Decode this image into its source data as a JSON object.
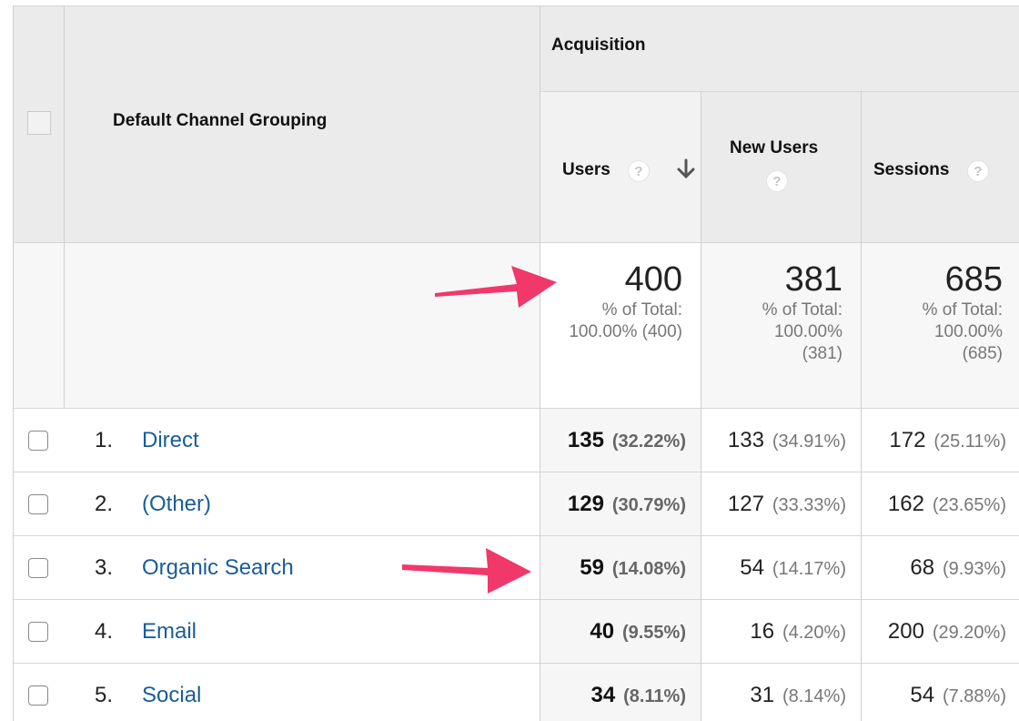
{
  "header": {
    "dimension_label": "Default Channel Grouping",
    "group_label": "Acquisition",
    "columns": [
      {
        "label": "Users",
        "sorted": true,
        "sort_icon": "arrow-down-icon",
        "help_icon": "question-icon"
      },
      {
        "label": "New Users",
        "help_icon": "question-icon"
      },
      {
        "label": "Sessions",
        "help_icon": "question-icon"
      }
    ]
  },
  "totals": {
    "users": {
      "value": "400",
      "line1": "% of Total:",
      "line2": "100.00% (400)"
    },
    "new_users": {
      "value": "381",
      "line1": "% of Total:",
      "line2": "100.00%",
      "line3": "(381)"
    },
    "sessions": {
      "value": "685",
      "line1": "% of Total:",
      "line2": "100.00%",
      "line3": "(685)"
    }
  },
  "rows": [
    {
      "num": "1.",
      "channel": "Direct",
      "users": "135",
      "users_pct": "(32.22%)",
      "new_users": "133",
      "new_users_pct": "(34.91%)",
      "sessions": "172",
      "sessions_pct": "(25.11%)"
    },
    {
      "num": "2.",
      "channel": "(Other)",
      "users": "129",
      "users_pct": "(30.79%)",
      "new_users": "127",
      "new_users_pct": "(33.33%)",
      "sessions": "162",
      "sessions_pct": "(23.65%)"
    },
    {
      "num": "3.",
      "channel": "Organic Search",
      "users": "59",
      "users_pct": "(14.08%)",
      "new_users": "54",
      "new_users_pct": "(14.17%)",
      "sessions": "68",
      "sessions_pct": "(9.93%)"
    },
    {
      "num": "4.",
      "channel": "Email",
      "users": "40",
      "users_pct": "(9.55%)",
      "new_users": "16",
      "new_users_pct": "(4.20%)",
      "sessions": "200",
      "sessions_pct": "(29.20%)"
    },
    {
      "num": "5.",
      "channel": "Social",
      "users": "34",
      "users_pct": "(8.11%)",
      "new_users": "31",
      "new_users_pct": "(8.14%)",
      "sessions": "54",
      "sessions_pct": "(7.88%)"
    }
  ],
  "colors": {
    "link": "#1a5c99",
    "annotation_arrow": "#f0386b",
    "header_bg": "#ebebeb"
  }
}
